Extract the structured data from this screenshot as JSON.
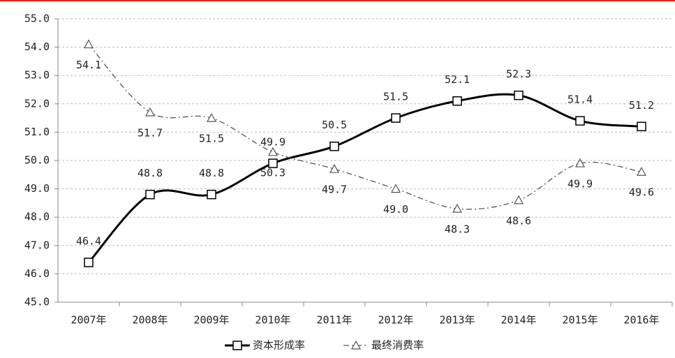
{
  "chart_data": {
    "type": "line",
    "categories": [
      "2007年",
      "2008年",
      "2009年",
      "2010年",
      "2011年",
      "2012年",
      "2013年",
      "2014年",
      "2015年",
      "2016年"
    ],
    "series": [
      {
        "name": "资本形成率",
        "color": "#000000",
        "marker": "square",
        "dash": "solid",
        "values": [
          46.4,
          48.8,
          48.8,
          49.9,
          50.5,
          51.5,
          52.1,
          52.3,
          51.4,
          51.2
        ],
        "value_labels": [
          "46.4",
          "48.8",
          "48.8",
          "49.9",
          "50.5",
          "51.5",
          "52.1",
          "52.3",
          "51.4",
          "51.2"
        ]
      },
      {
        "name": "最终消费率",
        "color": "#555555",
        "marker": "triangle",
        "dash": "dashdot",
        "values": [
          54.1,
          51.7,
          51.5,
          50.3,
          49.7,
          49.0,
          48.3,
          48.6,
          49.9,
          49.6
        ],
        "value_labels": [
          "54.1",
          "51.7",
          "51.5",
          "50.3",
          "49.7",
          "49.0",
          "48.3",
          "48.6",
          "49.9",
          "49.6"
        ]
      }
    ],
    "ylim": [
      45,
      55
    ],
    "yticks": [
      {
        "value": 45,
        "label": "45.0"
      },
      {
        "value": 46,
        "label": "46.0"
      },
      {
        "value": 47,
        "label": "47.0"
      },
      {
        "value": 48,
        "label": "48.0"
      },
      {
        "value": 49,
        "label": "49.0"
      },
      {
        "value": 50,
        "label": "50.0"
      },
      {
        "value": 51,
        "label": "51.0"
      },
      {
        "value": 52,
        "label": "52.0"
      },
      {
        "value": 53,
        "label": "53.0"
      },
      {
        "value": 54,
        "label": "54.0"
      },
      {
        "value": 55,
        "label": "55.0"
      }
    ],
    "grid": true,
    "smooth": true,
    "legend": "bottom"
  }
}
